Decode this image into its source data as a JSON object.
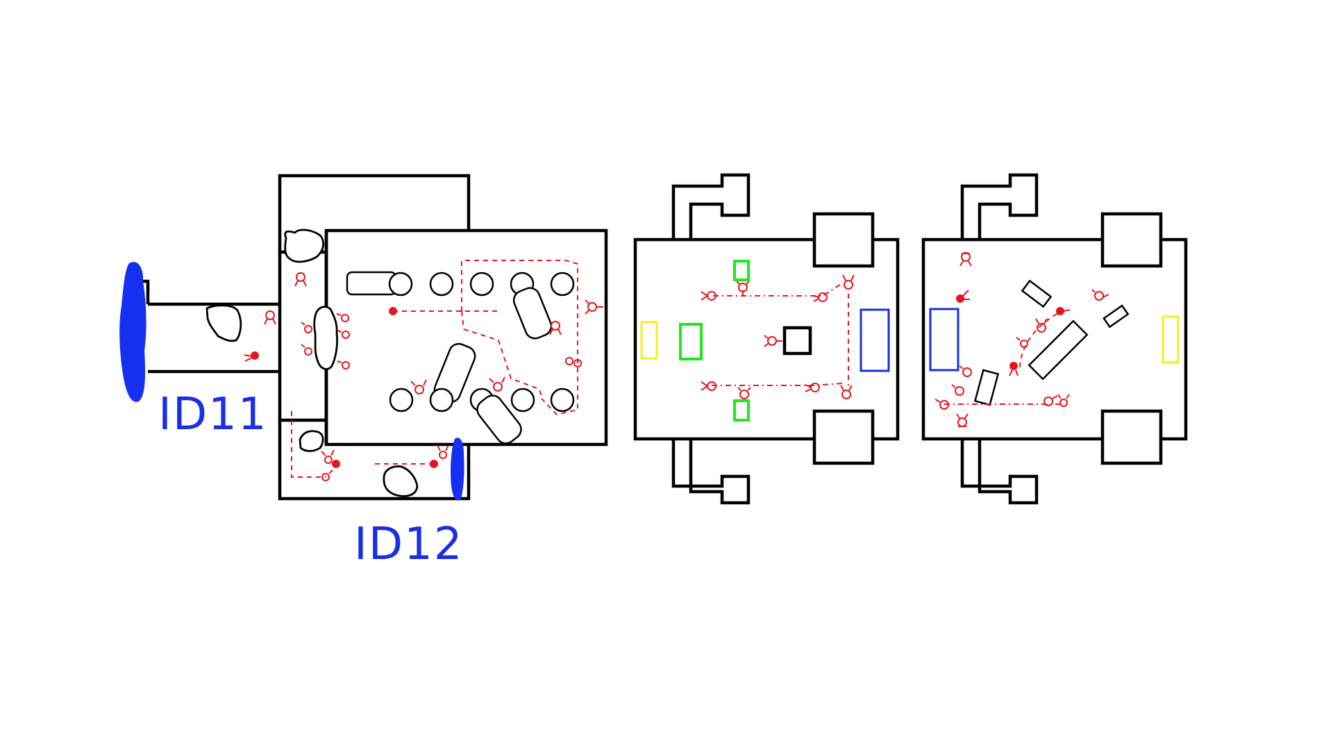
{
  "labels": {
    "left_id": "ID11",
    "right_id": "ID12"
  },
  "colors": {
    "wall": "#000000",
    "enemy": "#e8141c",
    "door_marker": "#1530f0",
    "label": "#1a2ee8",
    "spawn_green": "#1ee81e",
    "spawn_blue": "#1530e0",
    "spawn_yellow": "#f0f020"
  },
  "icons": {
    "enemy": "enemy-unit-icon",
    "enemy_active": "enemy-active-unit-icon",
    "pillar": "pillar-icon",
    "rock": "rock-icon"
  }
}
